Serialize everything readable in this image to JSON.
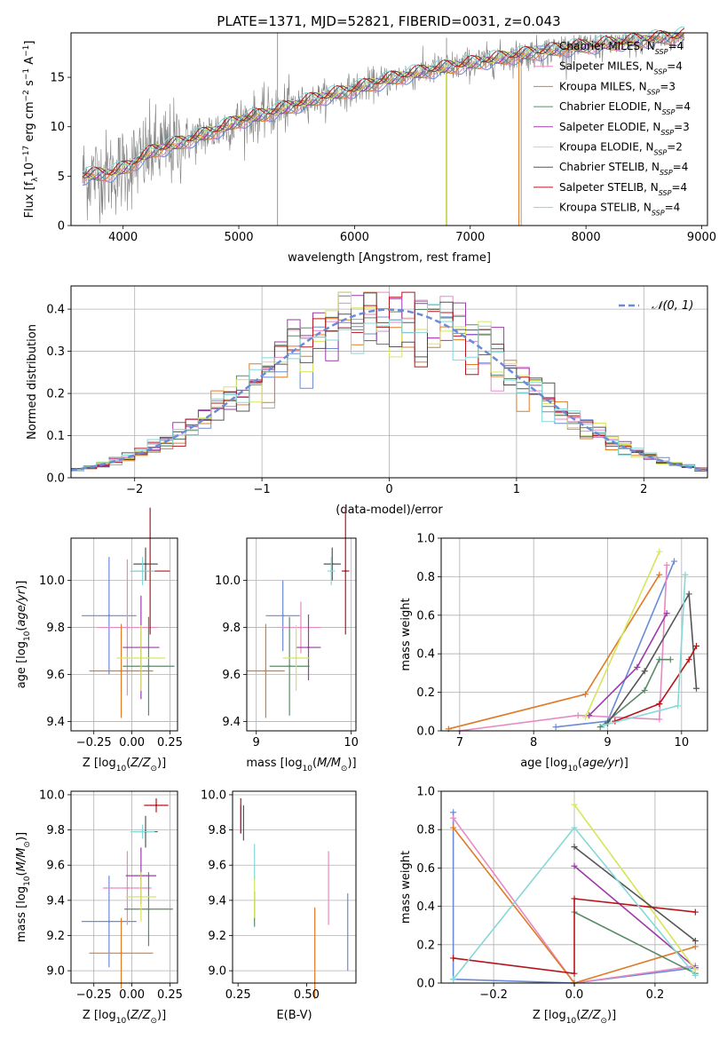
{
  "figure_title": "PLATE=1371, MJD=52821, FIBERID=0031, z=0.043",
  "colors": {
    "models": [
      "#6a8cd6",
      "#e58ac3",
      "#e07b26",
      "#5c8a69",
      "#9e3aaa",
      "#d6e55c",
      "#555555",
      "#b5161b",
      "#84d8d8"
    ],
    "data_spectrum": "#808080",
    "gaussian": "#6a8cd6",
    "grid": "#b0b0b0"
  },
  "chart_data": [
    {
      "id": "spectrum",
      "type": "line",
      "title": "PLATE=1371, MJD=52821, FIBERID=0031, z=0.043",
      "xlabel": "wavelength [Angstrom, rest frame]",
      "ylabel": "Flux [f_λ 10^-17 erg cm^-2 s^-1 A^-1]",
      "xlim": [
        3550,
        9050
      ],
      "ylim": [
        0,
        19.5
      ],
      "xticks": [
        4000,
        5000,
        6000,
        7000,
        8000,
        9000
      ],
      "yticks": [
        0,
        5,
        10,
        15
      ],
      "grid": false,
      "legend_position": "right",
      "legend": [
        {
          "label": "Chabrier MILES, N",
          "sub": "SSP",
          "suffix": "=4"
        },
        {
          "label": "Salpeter MILES, N",
          "sub": "SSP",
          "suffix": "=4"
        },
        {
          "label": "Kroupa MILES, N",
          "sub": "SSP",
          "suffix": "=3"
        },
        {
          "label": "Chabrier ELODIE, N",
          "sub": "SSP",
          "suffix": "=4"
        },
        {
          "label": "Salpeter ELODIE, N",
          "sub": "SSP",
          "suffix": "=3"
        },
        {
          "label": "Kroupa ELODIE, N",
          "sub": "SSP",
          "suffix": "=2"
        },
        {
          "label": "Chabrier STELIB, N",
          "sub": "SSP",
          "suffix": "=4"
        },
        {
          "label": "Salpeter STELIB, N",
          "sub": "SSP",
          "suffix": "=4"
        },
        {
          "label": "Kroupa STELIB, N",
          "sub": "SSP",
          "suffix": "=4"
        }
      ],
      "continuum_nodes": [
        [
          3650,
          5.0
        ],
        [
          3900,
          5.3
        ],
        [
          4050,
          6.0
        ],
        [
          4250,
          7.5
        ],
        [
          4500,
          8.4
        ],
        [
          4800,
          9.6
        ],
        [
          5000,
          10.6
        ],
        [
          5300,
          11.5
        ],
        [
          5600,
          12.6
        ],
        [
          6000,
          13.8
        ],
        [
          6300,
          14.8
        ],
        [
          6600,
          15.6
        ],
        [
          7000,
          16.4
        ],
        [
          7400,
          17.2
        ],
        [
          7800,
          17.9
        ],
        [
          8200,
          18.4
        ],
        [
          8600,
          18.9
        ],
        [
          8850,
          19.2
        ]
      ],
      "spikes": [
        [
          5335,
          0,
          19.5
        ],
        [
          6795,
          0,
          19.0
        ],
        [
          7440,
          0,
          18.0
        ]
      ]
    },
    {
      "id": "residuals",
      "type": "histogram",
      "xlabel": "(data-model)/error",
      "ylabel": "Normed distribution",
      "xlim": [
        -2.5,
        2.5
      ],
      "ylim": [
        0,
        0.455
      ],
      "xticks": [
        -2,
        -1,
        0,
        1,
        2
      ],
      "yticks": [
        0.0,
        0.1,
        0.2,
        0.3,
        0.4
      ],
      "bin_width": 0.1,
      "grid": true,
      "legend": [
        {
          "label": "𝒩(0, 1)"
        }
      ],
      "legend_position": "top-right",
      "gaussian": {
        "mean": 0,
        "sigma": 1
      }
    },
    {
      "id": "z_age",
      "type": "scatter-errorbar",
      "xlabel": "Z [log10(Z/Z⊙)]",
      "ylabel": "age [log10(age/yr)]",
      "xlim": [
        -0.4,
        0.3
      ],
      "ylim": [
        9.36,
        10.18
      ],
      "xticks": [
        -0.25,
        0.0,
        0.25
      ],
      "xticklabels": [
        "−0.25",
        "0.00",
        "0.25"
      ],
      "yticks": [
        9.4,
        9.6,
        9.8,
        10.0
      ],
      "points": [
        {
          "x": -0.15,
          "xerr": 0.18,
          "y": 9.85,
          "yerr": 0.25
        },
        {
          "x": -0.03,
          "xerr": 0.2,
          "y": 9.8,
          "yerr": 0.29
        },
        {
          "x": -0.07,
          "xerr": 0.21,
          "y": 9.615,
          "yerr": 0.2
        },
        {
          "x": 0.11,
          "xerr": 0.17,
          "y": 9.635,
          "yerr": 0.21
        },
        {
          "x": 0.06,
          "xerr": 0.12,
          "y": 9.715,
          "yerr": 0.22
        },
        {
          "x": 0.06,
          "xerr": 0.16,
          "y": 9.67,
          "yerr": 0.14
        },
        {
          "x": 0.09,
          "xerr": 0.08,
          "y": 10.07,
          "yerr": 0.07
        },
        {
          "x": 0.12,
          "xerr": 0.13,
          "y": 10.04,
          "yerr": 0.27
        },
        {
          "x": 0.07,
          "xerr": 0.08,
          "y": 10.04,
          "yerr": 0.06
        }
      ]
    },
    {
      "id": "mass_age",
      "type": "scatter-errorbar",
      "xlabel": "mass [log10(M/M⊙)]",
      "ylabel": "",
      "xlim": [
        8.9,
        10.05
      ],
      "ylim": [
        9.36,
        10.18
      ],
      "xticks": [
        9,
        10
      ],
      "yticks": [
        9.4,
        9.6,
        9.8,
        10.0
      ],
      "points": [
        {
          "x": 9.28,
          "xerr": 0.18,
          "y": 9.85,
          "yerr": 0.15
        },
        {
          "x": 9.47,
          "xerr": 0.21,
          "y": 9.8,
          "yerr": 0.11
        },
        {
          "x": 9.1,
          "xerr": 0.2,
          "y": 9.615,
          "yerr": 0.2
        },
        {
          "x": 9.35,
          "xerr": 0.21,
          "y": 9.635,
          "yerr": 0.21
        },
        {
          "x": 9.55,
          "xerr": 0.13,
          "y": 9.715,
          "yerr": 0.14
        },
        {
          "x": 9.42,
          "xerr": 0.14,
          "y": 9.67,
          "yerr": 0.14
        },
        {
          "x": 9.8,
          "xerr": 0.09,
          "y": 10.07,
          "yerr": 0.07
        },
        {
          "x": 9.94,
          "xerr": 0.04,
          "y": 10.04,
          "yerr": 0.27
        },
        {
          "x": 9.79,
          "xerr": 0.04,
          "y": 10.04,
          "yerr": 0.06
        }
      ]
    },
    {
      "id": "age_weight",
      "type": "line",
      "xlabel": "age [log10(age/yr)]",
      "ylabel": "mass weight",
      "xlim": [
        6.75,
        10.35
      ],
      "ylim": [
        0,
        1.0
      ],
      "xticks": [
        7,
        8,
        9,
        10
      ],
      "yticks": [
        0.0,
        0.2,
        0.4,
        0.6,
        0.8,
        1.0
      ],
      "series": [
        {
          "points": [
            [
              8.3,
              0.02
            ],
            [
              9.0,
              0.05
            ],
            [
              9.9,
              0.88
            ]
          ]
        },
        {
          "points": [
            [
              7.0,
              0.0
            ],
            [
              8.6,
              0.08
            ],
            [
              9.7,
              0.06
            ],
            [
              9.8,
              0.86
            ]
          ]
        },
        {
          "points": [
            [
              6.85,
              0.01
            ],
            [
              8.7,
              0.19
            ],
            [
              9.7,
              0.81
            ]
          ]
        },
        {
          "points": [
            [
              8.9,
              0.02
            ],
            [
              9.5,
              0.21
            ],
            [
              9.7,
              0.37
            ],
            [
              9.85,
              0.37
            ]
          ]
        },
        {
          "points": [
            [
              8.75,
              0.08
            ],
            [
              9.4,
              0.33
            ],
            [
              9.8,
              0.61
            ]
          ]
        },
        {
          "points": [
            [
              8.7,
              0.07
            ],
            [
              9.7,
              0.93
            ]
          ]
        },
        {
          "points": [
            [
              9.0,
              0.04
            ],
            [
              9.5,
              0.31
            ],
            [
              10.1,
              0.71
            ],
            [
              10.2,
              0.22
            ]
          ]
        },
        {
          "points": [
            [
              9.1,
              0.05
            ],
            [
              9.7,
              0.14
            ],
            [
              10.1,
              0.37
            ],
            [
              10.2,
              0.44
            ]
          ]
        },
        {
          "points": [
            [
              8.95,
              0.03
            ],
            [
              9.95,
              0.13
            ],
            [
              10.05,
              0.81
            ]
          ]
        }
      ]
    },
    {
      "id": "z_mass",
      "type": "scatter-errorbar",
      "xlabel": "Z [log10(Z/Z⊙)]",
      "ylabel": "mass [log10(M/M⊙)]",
      "xlim": [
        -0.4,
        0.3
      ],
      "ylim": [
        8.93,
        10.02
      ],
      "xticks": [
        -0.25,
        0.0,
        0.25
      ],
      "xticklabels": [
        "−0.25",
        "0.00",
        "0.25"
      ],
      "yticks": [
        9.0,
        9.2,
        9.4,
        9.6,
        9.8,
        10.0
      ],
      "points": [
        {
          "x": -0.15,
          "xerr": 0.18,
          "y": 9.28,
          "yerr": 0.26
        },
        {
          "x": -0.03,
          "xerr": 0.16,
          "y": 9.47,
          "yerr": 0.21
        },
        {
          "x": -0.07,
          "xerr": 0.21,
          "y": 9.1,
          "yerr": 0.2
        },
        {
          "x": 0.11,
          "xerr": 0.16,
          "y": 9.35,
          "yerr": 0.21
        },
        {
          "x": 0.06,
          "xerr": 0.1,
          "y": 9.54,
          "yerr": 0.16
        },
        {
          "x": 0.06,
          "xerr": 0.1,
          "y": 9.42,
          "yerr": 0.14
        },
        {
          "x": 0.09,
          "xerr": 0.08,
          "y": 9.79,
          "yerr": 0.09
        },
        {
          "x": 0.16,
          "xerr": 0.08,
          "y": 9.94,
          "yerr": 0.04
        },
        {
          "x": 0.07,
          "xerr": 0.08,
          "y": 9.79,
          "yerr": 0.04
        }
      ]
    },
    {
      "id": "ebv_mass",
      "type": "scatter-errorbar",
      "xlabel": "E(B-V)",
      "ylabel": "",
      "xlim": [
        0.23,
        0.68
      ],
      "ylim": [
        8.93,
        10.02
      ],
      "xticks": [
        0.25,
        0.5
      ],
      "xticklabels": [
        "0.25",
        "0.50"
      ],
      "yticks": [
        9.0,
        9.2,
        9.4,
        9.6,
        9.8,
        10.0
      ],
      "points": [
        {
          "x": 0.65,
          "xerr": 0,
          "y": 9.22,
          "yerr": 0.22
        },
        {
          "x": 0.58,
          "xerr": 0,
          "y": 9.47,
          "yerr": 0.21
        },
        {
          "x": 0.53,
          "xerr": 0,
          "y": 9.1,
          "yerr": 0.26
        },
        {
          "x": 0.31,
          "xerr": 0,
          "y": 9.35,
          "yerr": 0.1
        },
        {
          "x": 0.26,
          "xerr": 0,
          "y": 9.86,
          "yerr": 0.08
        },
        {
          "x": 0.31,
          "xerr": 0,
          "y": 9.42,
          "yerr": 0.12
        },
        {
          "x": 0.27,
          "xerr": 0,
          "y": 9.84,
          "yerr": 0.1
        },
        {
          "x": 0.26,
          "xerr": 0,
          "y": 9.88,
          "yerr": 0.1
        },
        {
          "x": 0.31,
          "xerr": 0,
          "y": 9.62,
          "yerr": 0.1
        }
      ]
    },
    {
      "id": "z_weight",
      "type": "line",
      "xlabel": "Z [log10(Z/Z⊙)]",
      "ylabel": "mass weight",
      "xlim": [
        -0.33,
        0.33
      ],
      "ylim": [
        0,
        1.0
      ],
      "xticks": [
        -0.2,
        0.0,
        0.2
      ],
      "xticklabels": [
        "−0.2",
        "0.0",
        "0.2"
      ],
      "yticks": [
        0.0,
        0.2,
        0.4,
        0.6,
        0.8,
        1.0
      ],
      "series": [
        {
          "points": [
            [
              -0.3,
              0.89
            ],
            [
              -0.3,
              0.02
            ],
            [
              0.0,
              0.0
            ],
            [
              0.3,
              0.08
            ]
          ]
        },
        {
          "points": [
            [
              -0.3,
              0.86
            ],
            [
              0.0,
              0.0
            ],
            [
              0.3,
              0.09
            ]
          ]
        },
        {
          "points": [
            [
              -0.3,
              0.81
            ],
            [
              0.0,
              0.0
            ],
            [
              0.3,
              0.19
            ]
          ]
        },
        {
          "points": [
            [
              0.0,
              0.37
            ],
            [
              0.3,
              0.05
            ]
          ]
        },
        {
          "points": [
            [
              0.0,
              0.61
            ],
            [
              0.3,
              0.08
            ]
          ]
        },
        {
          "points": [
            [
              0.0,
              0.93
            ],
            [
              0.3,
              0.07
            ]
          ]
        },
        {
          "points": [
            [
              0.0,
              0.71
            ],
            [
              0.3,
              0.22
            ]
          ]
        },
        {
          "points": [
            [
              -0.3,
              0.13
            ],
            [
              0.0,
              0.05
            ],
            [
              0.0,
              0.44
            ],
            [
              0.3,
              0.37
            ]
          ]
        },
        {
          "points": [
            [
              -0.3,
              0.02
            ],
            [
              0.0,
              0.81
            ],
            [
              0.3,
              0.04
            ]
          ]
        }
      ]
    }
  ]
}
